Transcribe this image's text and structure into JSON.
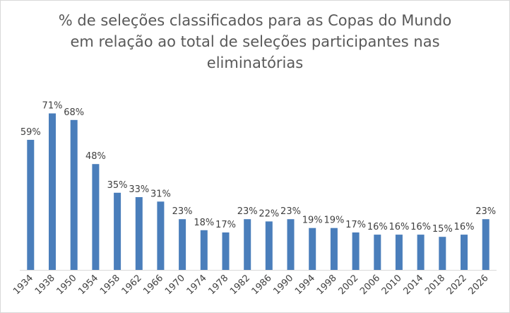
{
  "chart_data": {
    "type": "bar",
    "title_lines": [
      "% de seleções classificados para as Copas do Mundo",
      "em relação ao total de seleções participantes nas",
      "eliminatórias"
    ],
    "categories": [
      "1934",
      "1938",
      "1950",
      "1954",
      "1958",
      "1962",
      "1966",
      "1970",
      "1974",
      "1978",
      "1982",
      "1986",
      "1990",
      "1994",
      "1998",
      "2002",
      "2006",
      "2010",
      "2014",
      "2018",
      "2022",
      "2026"
    ],
    "values": [
      59,
      71,
      68,
      48,
      35,
      33,
      31,
      23,
      18,
      17,
      23,
      22,
      23,
      19,
      19,
      17,
      16,
      16,
      16,
      15,
      16,
      23
    ],
    "value_labels": [
      "59%",
      "71%",
      "68%",
      "48%",
      "35%",
      "33%",
      "31%",
      "23%",
      "18%",
      "17%",
      "23%",
      "22%",
      "23%",
      "19%",
      "19%",
      "17%",
      "16%",
      "16%",
      "16%",
      "15%",
      "16%",
      "23%"
    ],
    "ylim": [
      0,
      80
    ],
    "grid": false,
    "legend": "none",
    "colors": {
      "bar": "#4a7ebb",
      "text": "#404040",
      "title": "#595959",
      "axis": "#d9d9d9"
    }
  }
}
